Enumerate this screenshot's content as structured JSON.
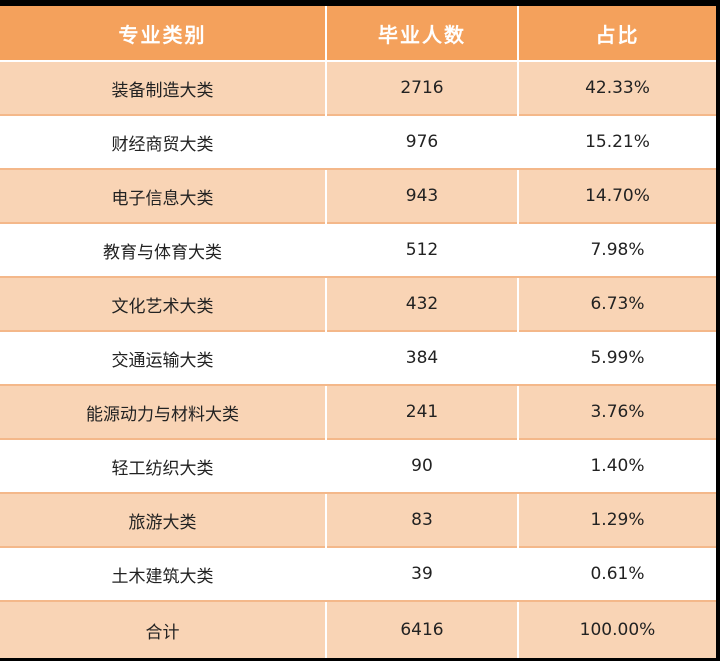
{
  "table": {
    "headers": [
      "专业类别",
      "毕业人数",
      "占比"
    ],
    "rows": [
      {
        "category": "装备制造大类",
        "count": "2716",
        "ratio": "42.33%"
      },
      {
        "category": "财经商贸大类",
        "count": "976",
        "ratio": "15.21%"
      },
      {
        "category": "电子信息大类",
        "count": "943",
        "ratio": "14.70%"
      },
      {
        "category": "教育与体育大类",
        "count": "512",
        "ratio": "7.98%"
      },
      {
        "category": "文化艺术大类",
        "count": "432",
        "ratio": "6.73%"
      },
      {
        "category": "交通运输大类",
        "count": "384",
        "ratio": "5.99%"
      },
      {
        "category": "能源动力与材料大类",
        "count": "241",
        "ratio": "3.76%"
      },
      {
        "category": "轻工纺织大类",
        "count": "90",
        "ratio": "1.40%"
      },
      {
        "category": "旅游大类",
        "count": "83",
        "ratio": "1.29%"
      },
      {
        "category": "土木建筑大类",
        "count": "39",
        "ratio": "0.61%"
      }
    ],
    "total": {
      "category": "合计",
      "count": "6416",
      "ratio": "100.00%"
    }
  },
  "colors": {
    "header_bg": "#f4a15c",
    "odd_row_bg": "#f9d4b5",
    "even_row_bg": "#ffffff"
  }
}
